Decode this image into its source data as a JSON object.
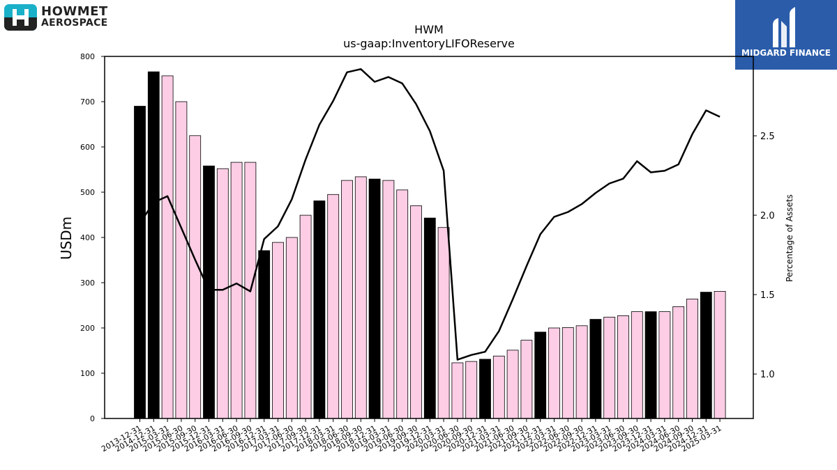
{
  "company_logo": {
    "line1": "HOWMET",
    "line2": "AEROSPACE",
    "color": "#1ab0c8"
  },
  "watermark": {
    "text": "MIDGARD FINANCE",
    "bg": "#2a5caa"
  },
  "chart_data": {
    "type": "bar",
    "title": "HWM",
    "subtitle": "us-gaap:InventoryLIFOReserve",
    "ylabel": "USDm",
    "y2label": "Percentage of Assets",
    "ylim": [
      0,
      800
    ],
    "y2lim": [
      0.72,
      3.0
    ],
    "yticks": [
      0,
      100,
      200,
      300,
      400,
      500,
      600,
      700,
      800
    ],
    "y2ticks": [
      "1.0",
      "1.5",
      "2.0",
      "2.5"
    ],
    "colors": {
      "annual": "#000000",
      "quarter": "#fccde5",
      "line": "#000000"
    },
    "categories": [
      "2013-12-31",
      "2014-12-31",
      "2015-03-31",
      "2015-06-30",
      "2015-09-30",
      "2015-12-31",
      "2016-03-31",
      "2016-06-30",
      "2016-09-30",
      "2016-12-31",
      "2017-03-31",
      "2017-06-30",
      "2017-09-30",
      "2017-12-31",
      "2018-03-31",
      "2018-06-30",
      "2018-09-30",
      "2018-12-31",
      "2019-03-31",
      "2019-06-30",
      "2019-09-30",
      "2019-12-31",
      "2020-03-31",
      "2020-06-30",
      "2020-09-30",
      "2020-12-31",
      "2021-03-31",
      "2021-06-30",
      "2021-09-30",
      "2021-12-31",
      "2022-03-31",
      "2022-06-30",
      "2022-09-30",
      "2022-12-31",
      "2023-03-31",
      "2023-06-30",
      "2023-09-30",
      "2023-12-31",
      "2024-03-31",
      "2024-06-30",
      "2024-09-30",
      "2024-12-31",
      "2025-03-31"
    ],
    "series": [
      {
        "values": [
          690,
          766,
          757,
          700,
          625,
          558,
          552,
          566,
          566,
          371,
          389,
          400,
          449,
          481,
          495,
          526,
          534,
          529,
          526,
          505,
          470,
          443,
          422,
          123,
          126,
          131,
          138,
          151,
          173,
          191,
          200,
          201,
          205,
          219,
          224,
          227,
          236,
          236,
          236,
          247,
          264,
          279,
          281
        ]
      },
      {
        "type": "line",
        "axis": "right",
        "values": [
          1.95,
          2.08,
          2.12,
          1.92,
          1.72,
          1.53,
          1.53,
          1.57,
          1.52,
          1.85,
          1.93,
          2.1,
          2.35,
          2.57,
          2.72,
          2.9,
          2.92,
          2.84,
          2.87,
          2.83,
          2.7,
          2.53,
          2.28,
          1.09,
          1.12,
          1.14,
          1.27,
          1.47,
          1.68,
          1.88,
          1.99,
          2.02,
          2.07,
          2.14,
          2.2,
          2.23,
          2.34,
          2.27,
          2.28,
          2.32,
          2.51,
          2.66,
          2.62
        ]
      }
    ],
    "grid": false,
    "legend": "none"
  }
}
